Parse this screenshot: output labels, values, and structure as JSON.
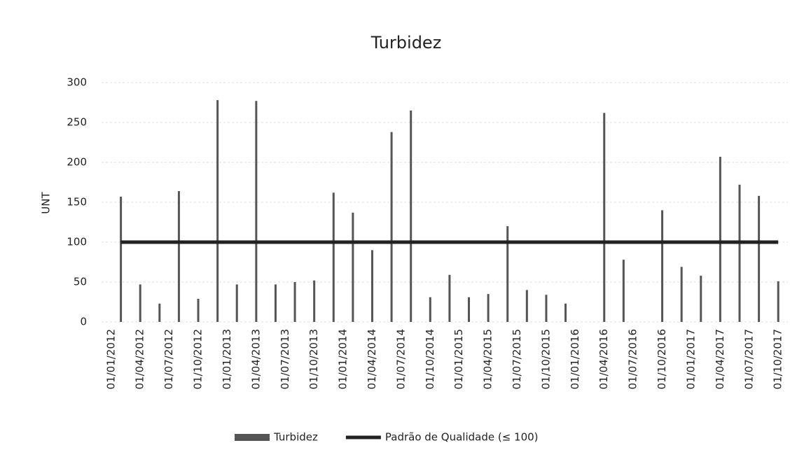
{
  "chart_data": {
    "type": "bar",
    "title": "Turbidez",
    "y_label": "UNT",
    "x": [
      "01/02/2012",
      "01/04/2012",
      "01/06/2012",
      "01/08/2012",
      "01/10/2012",
      "01/12/2012",
      "01/02/2013",
      "01/04/2013",
      "01/06/2013",
      "01/08/2013",
      "01/10/2013",
      "01/12/2013",
      "01/02/2014",
      "01/04/2014",
      "01/06/2014",
      "01/08/2014",
      "01/10/2014",
      "01/12/2014",
      "01/02/2015",
      "01/04/2015",
      "01/06/2015",
      "01/08/2015",
      "01/10/2015",
      "01/12/2015",
      "01/02/2016",
      "01/04/2016",
      "01/06/2016",
      "01/08/2016",
      "01/10/2016",
      "01/12/2016",
      "01/02/2017",
      "01/04/2017",
      "01/06/2017",
      "01/08/2017",
      "01/10/2017"
    ],
    "series": [
      {
        "name": "Turbidez",
        "color": "#555555",
        "values": [
          157,
          47,
          23,
          164,
          29,
          278,
          47,
          277,
          47,
          50,
          52,
          162,
          137,
          90,
          238,
          265,
          31,
          59,
          31,
          35,
          120,
          40,
          34,
          23,
          null,
          262,
          78,
          null,
          140,
          69,
          58,
          207,
          172,
          158,
          51
        ]
      },
      {
        "name": "Padrão de Qualidade (≤ 100)",
        "color": "#222222",
        "type": "line",
        "values": [
          100,
          100,
          100,
          100,
          100,
          100,
          100,
          100,
          100,
          100,
          100,
          100,
          100,
          100,
          100,
          100,
          100,
          100,
          100,
          100,
          100,
          100,
          100,
          100,
          100,
          100,
          100,
          100,
          100,
          100,
          100,
          100,
          100,
          100,
          100
        ]
      }
    ],
    "xlim": [
      "01/12/2011",
      "01/11/2017"
    ],
    "xticks": [
      "01/01/2012",
      "01/04/2012",
      "01/07/2012",
      "01/10/2012",
      "01/01/2013",
      "01/04/2013",
      "01/07/2013",
      "01/10/2013",
      "01/01/2014",
      "01/04/2014",
      "01/07/2014",
      "01/10/2014",
      "01/01/2015",
      "01/04/2015",
      "01/07/2015",
      "01/10/2015",
      "01/01/2016",
      "01/04/2016",
      "01/07/2016",
      "01/10/2016",
      "01/01/2017",
      "01/04/2017",
      "01/07/2017",
      "01/10/2017"
    ],
    "ylim": [
      0,
      300
    ],
    "yticks": [
      0,
      50,
      100,
      150,
      200,
      250,
      300
    ],
    "grid": true,
    "legend": "bottom"
  }
}
